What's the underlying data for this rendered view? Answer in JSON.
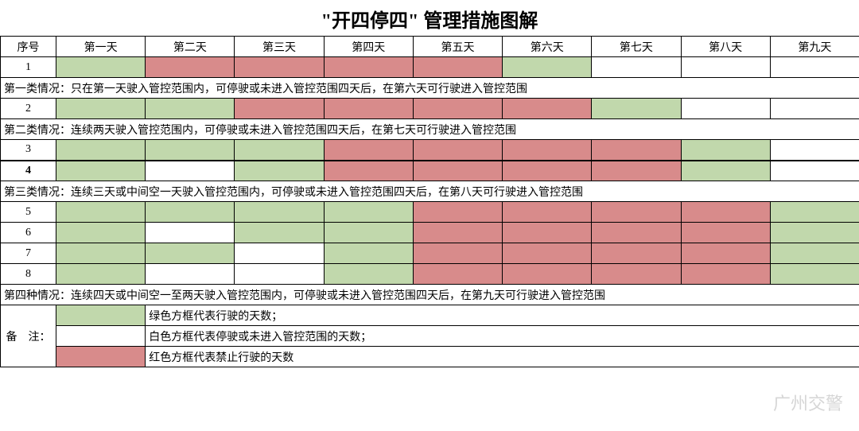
{
  "title": "\"开四停四\" 管理措施图解",
  "watermark": "广州交警",
  "colors": {
    "green": "#c1d8ac",
    "red": "#d88b8b",
    "white": "#ffffff"
  },
  "headers": {
    "idx": "序号",
    "days": [
      "第一天",
      "第二天",
      "第三天",
      "第四天",
      "第五天",
      "第六天",
      "第七天",
      "第八天",
      "第九天"
    ]
  },
  "rows": [
    {
      "idx": "1",
      "cells": [
        "green",
        "red",
        "red",
        "red",
        "red",
        "green",
        "white",
        "white",
        "white"
      ]
    }
  ],
  "desc1": "第一类情况：只在第一天驶入管控范围内，可停驶或未进入管控范围四天后，在第六天可行驶进入管控范围",
  "rows2": [
    {
      "idx": "2",
      "cells": [
        "green",
        "green",
        "red",
        "red",
        "red",
        "red",
        "green",
        "white",
        "white"
      ]
    }
  ],
  "desc2": "第二类情况：连续两天驶入管控范围内，可停驶或未进入管控范围四天后，在第七天可行驶进入管控范围",
  "rows3": [
    {
      "idx": "3",
      "cells": [
        "green",
        "green",
        "green",
        "red",
        "red",
        "red",
        "red",
        "green",
        "white"
      ]
    },
    {
      "idx": "4",
      "cells": [
        "green",
        "white",
        "green",
        "red",
        "red",
        "red",
        "red",
        "green",
        "white"
      ],
      "bold": true
    }
  ],
  "desc3": "第三类情况：连续三天或中间空一天驶入管控范围内，可停驶或未进入管控范围四天后，在第八天可行驶进入管控范围",
  "rows4": [
    {
      "idx": "5",
      "cells": [
        "green",
        "green",
        "green",
        "green",
        "red",
        "red",
        "red",
        "red",
        "green"
      ]
    },
    {
      "idx": "6",
      "cells": [
        "green",
        "white",
        "green",
        "green",
        "red",
        "red",
        "red",
        "red",
        "green"
      ]
    },
    {
      "idx": "7",
      "cells": [
        "green",
        "green",
        "white",
        "green",
        "red",
        "red",
        "red",
        "red",
        "green"
      ]
    },
    {
      "idx": "8",
      "cells": [
        "green",
        "white",
        "white",
        "green",
        "red",
        "red",
        "red",
        "red",
        "green"
      ]
    }
  ],
  "desc4": "第四种情况：连续四天或中间空一至两天驶入管控范围内，可停驶或未进入管控范围四天后，在第九天可行驶进入管控范围",
  "legend": {
    "label": "备　注：",
    "rows": [
      {
        "swatch": "green",
        "text": "绿色方框代表行驶的天数；"
      },
      {
        "swatch": "white",
        "text": "白色方框代表停驶或未进入管控范围的天数；"
      },
      {
        "swatch": "red",
        "text": "红色方框代表禁止行驶的天数"
      }
    ]
  }
}
